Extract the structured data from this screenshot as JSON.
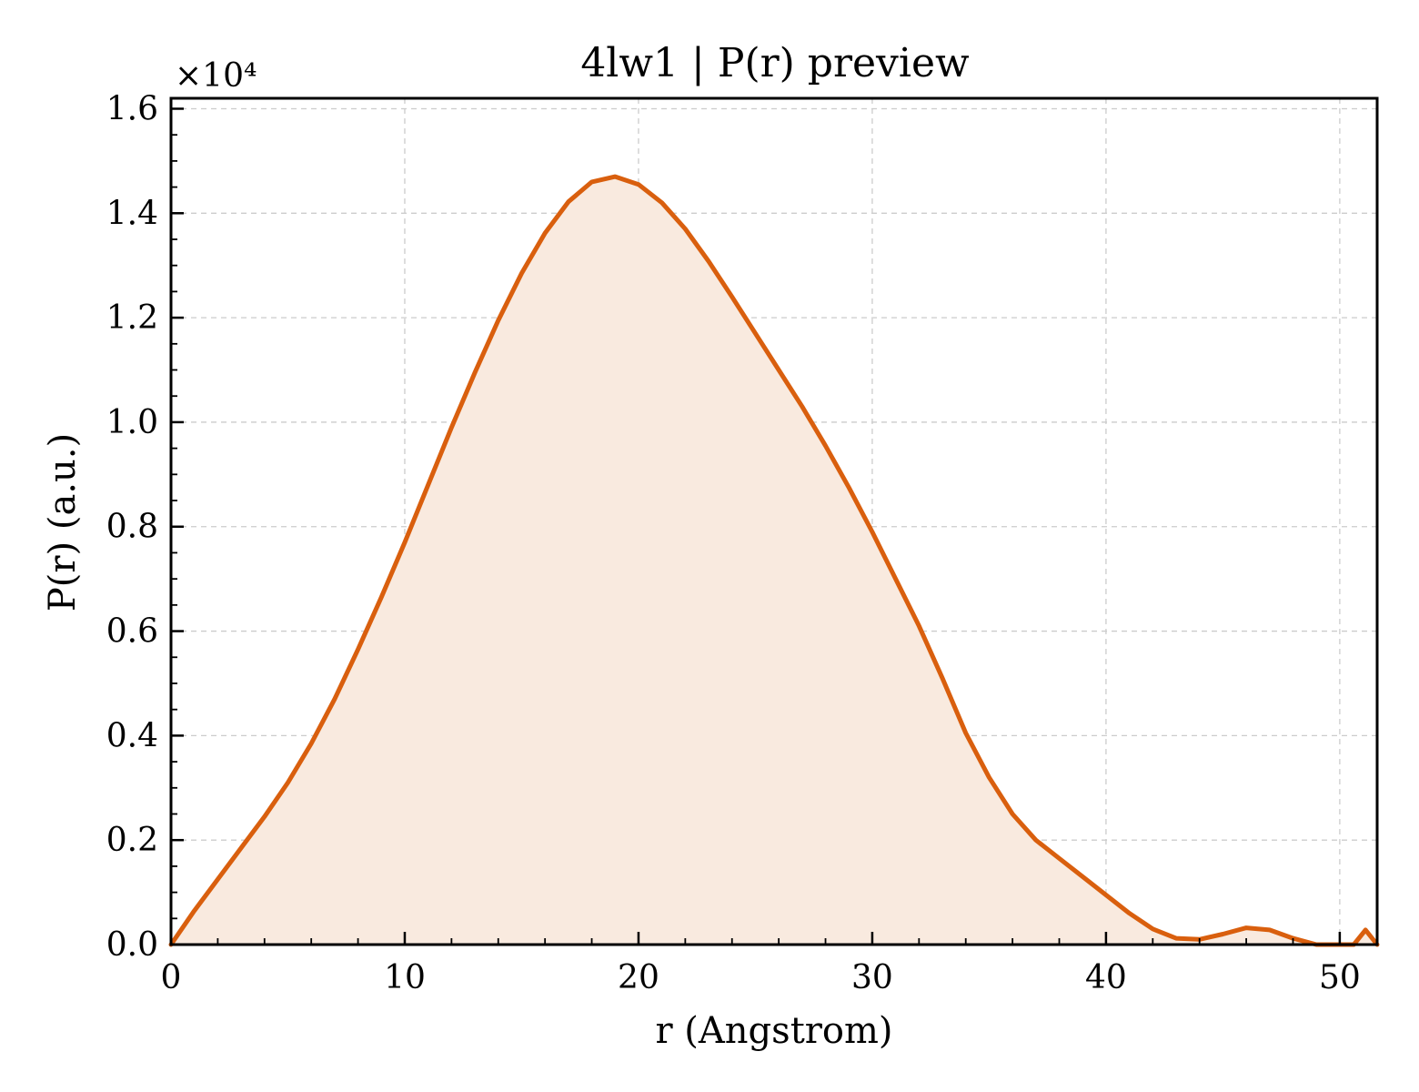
{
  "chart_data": {
    "type": "area",
    "title": "4lw1 | P(r) preview",
    "xlabel": "r (Angstrom)",
    "ylabel": "P(r) (a.u.)",
    "y_multiplier_label": "×10⁴",
    "xlim": [
      0,
      51.6
    ],
    "ylim": [
      0,
      1.62
    ],
    "x_ticks": [
      0,
      10,
      20,
      30,
      40,
      50
    ],
    "x_tick_labels": [
      "0",
      "10",
      "20",
      "30",
      "40",
      "50"
    ],
    "y_ticks": [
      0,
      0.2,
      0.4,
      0.6,
      0.8,
      1.0,
      1.2,
      1.4,
      1.6
    ],
    "y_tick_labels": [
      "0.0",
      "0.2",
      "0.4",
      "0.6",
      "0.8",
      "1.0",
      "1.2",
      "1.4",
      "1.6"
    ],
    "grid": true,
    "line_color": "#d95f0e",
    "fill_color": "#f9eadf",
    "series": [
      {
        "x": [
          0,
          1,
          2,
          3,
          4,
          5,
          6,
          7,
          8,
          9,
          10,
          11,
          12,
          13,
          14,
          15,
          16,
          17,
          18,
          19,
          20,
          21,
          22,
          23,
          24,
          25,
          26,
          27,
          28,
          29,
          30,
          31,
          32,
          33,
          34,
          35,
          36,
          37,
          38,
          39,
          40,
          41,
          42,
          43,
          44,
          45,
          46,
          47,
          48,
          49,
          50,
          50.6,
          51.1,
          51.6
        ],
        "y": [
          0.0,
          0.065,
          0.125,
          0.185,
          0.245,
          0.31,
          0.385,
          0.47,
          0.565,
          0.665,
          0.77,
          0.88,
          0.99,
          1.095,
          1.195,
          1.285,
          1.362,
          1.422,
          1.46,
          1.47,
          1.455,
          1.42,
          1.37,
          1.308,
          1.24,
          1.17,
          1.1,
          1.03,
          0.955,
          0.875,
          0.79,
          0.7,
          0.61,
          0.51,
          0.405,
          0.32,
          0.25,
          0.2,
          0.165,
          0.13,
          0.095,
          0.06,
          0.03,
          0.012,
          0.01,
          0.02,
          0.032,
          0.028,
          0.012,
          0.0,
          0.0,
          0.0,
          0.028,
          0.0
        ]
      }
    ]
  }
}
